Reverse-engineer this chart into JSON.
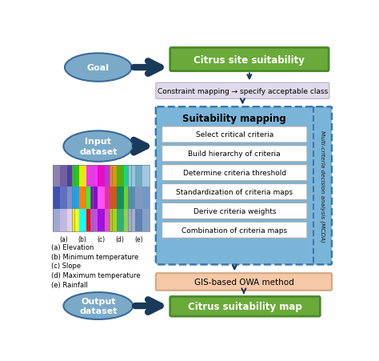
{
  "title": "Citrus site suitability",
  "constraint_text": "Constraint mapping → specify acceptable class",
  "suitability_title": "Suitability mapping",
  "suitability_steps": [
    "Select critical criteria",
    "Build hierarchy of criteria",
    "Determine criteria threshold",
    "Standardization of criteria maps",
    "Derive criteria weights",
    "Combination of criteria maps"
  ],
  "mcda_label": "Multi-criteria decision analysis (MCDA)",
  "owa_label": "GIS-based OWA method",
  "final_label": "Citrus suitability map",
  "goal_label": "Goal",
  "input_label": "Input\ndataset",
  "output_label": "Output\ndataset",
  "legend_items": [
    "(a) Elevation",
    "(b) Minimum temperature",
    "(c) Slope",
    "(d) Maximum temperature",
    "(e) Rainfall"
  ],
  "colors": {
    "green_box": "#6aaa3a",
    "green_box_border": "#4a8a2a",
    "constraint_box": "#e0daea",
    "constraint_border": "#c0b8d0",
    "suitability_bg": "#7ab4d8",
    "suitability_border": "#3a7aaa",
    "step_box": "#ffffff",
    "step_border": "#aaaaaa",
    "owa_box": "#f5c8a8",
    "owa_border": "#d0a880",
    "final_box": "#6aaa3a",
    "final_border": "#4a8a2a",
    "ellipse_fill": "#7aaac8",
    "ellipse_border": "#3a6a9a",
    "arrow_dark": "#1a3a5a",
    "mcda_border": "#3a7aaa",
    "background": "#ffffff",
    "text_dark": "#1a1a1a"
  }
}
